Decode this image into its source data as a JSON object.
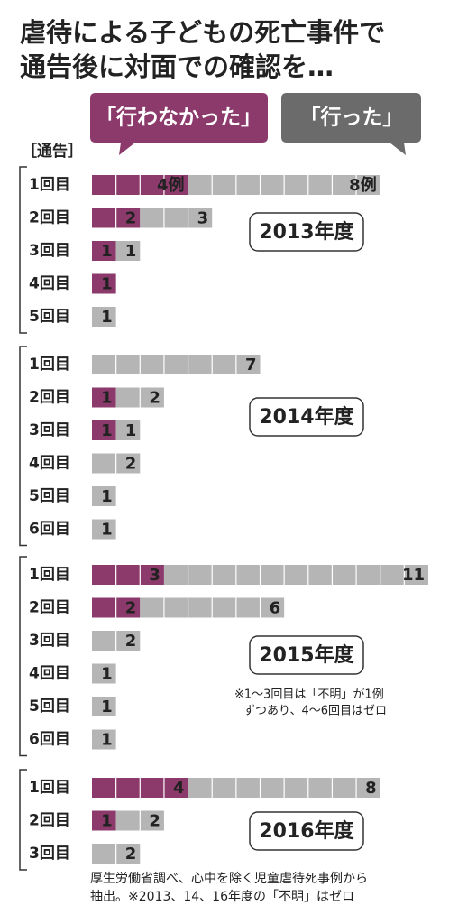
{
  "title": [
    "虐待による子どもの死亡事件で",
    "通告後に対面での確認を…"
  ],
  "chart_data": [
    {
      "type": "bar",
      "orientation": "horizontal",
      "stacked": true,
      "title": "2013年度",
      "y_label": "［通告］",
      "categories": [
        "1回目",
        "2回目",
        "3回目",
        "4回目",
        "5回目"
      ],
      "xlim": [
        0,
        14
      ],
      "series": [
        {
          "name": "「行わなかった」",
          "color": "#8c3a6b",
          "values": [
            4,
            2,
            1,
            1,
            null
          ],
          "value_labels": [
            "4例",
            null,
            null,
            null,
            null
          ]
        },
        {
          "name": "「行った」",
          "color": "#b5b5b5",
          "values": [
            8,
            3,
            1,
            null,
            1
          ],
          "value_labels": [
            "8例",
            null,
            null,
            null,
            null
          ]
        }
      ]
    },
    {
      "type": "bar",
      "orientation": "horizontal",
      "stacked": true,
      "title": "2014年度",
      "categories": [
        "1回目",
        "2回目",
        "3回目",
        "4回目",
        "5回目",
        "6回目"
      ],
      "xlim": [
        0,
        14
      ],
      "series": [
        {
          "color": "#8c3a6b",
          "values": [
            null,
            1,
            1,
            null,
            null,
            null
          ]
        },
        {
          "color": "#b5b5b5",
          "values": [
            7,
            2,
            1,
            2,
            1,
            1
          ]
        }
      ]
    },
    {
      "type": "bar",
      "orientation": "horizontal",
      "stacked": true,
      "title": "2015年度",
      "categories": [
        "1回目",
        "2回目",
        "3回目",
        "4回目",
        "5回目",
        "6回目"
      ],
      "xlim": [
        0,
        14
      ],
      "note": [
        "※1〜3回目は「不明」が1例",
        "ずつあり、4〜6回目はゼロ"
      ],
      "series": [
        {
          "color": "#8c3a6b",
          "values": [
            3,
            2,
            null,
            null,
            null,
            null
          ]
        },
        {
          "color": "#b5b5b5",
          "values": [
            11,
            6,
            2,
            1,
            1,
            1
          ]
        }
      ]
    },
    {
      "type": "bar",
      "orientation": "horizontal",
      "stacked": true,
      "title": "2016年度",
      "categories": [
        "1回目",
        "2回目",
        "3回目"
      ],
      "xlim": [
        0,
        14
      ],
      "series": [
        {
          "color": "#8c3a6b",
          "values": [
            4,
            1,
            null
          ]
        },
        {
          "color": "#b5b5b5",
          "values": [
            8,
            2,
            2
          ]
        }
      ]
    }
  ],
  "source": [
    "厚生労働省調べ、心中を除く児童虐待死事例から",
    "抽出。※2013、14、16年度の「不明」はゼロ"
  ]
}
